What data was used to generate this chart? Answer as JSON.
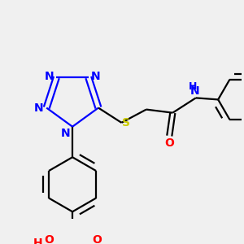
{
  "bg_color": "#f0f0f0",
  "tetrazole_N_color": "blue",
  "S_color": "#cccc00",
  "O_color": "red",
  "N_amide_color": "blue",
  "line_width": 1.6,
  "dbo": 0.035,
  "font_size": 10,
  "fig_width": 3.0,
  "fig_height": 3.0,
  "xlim": [
    0.1,
    3.0
  ],
  "ylim": [
    0.5,
    3.0
  ]
}
